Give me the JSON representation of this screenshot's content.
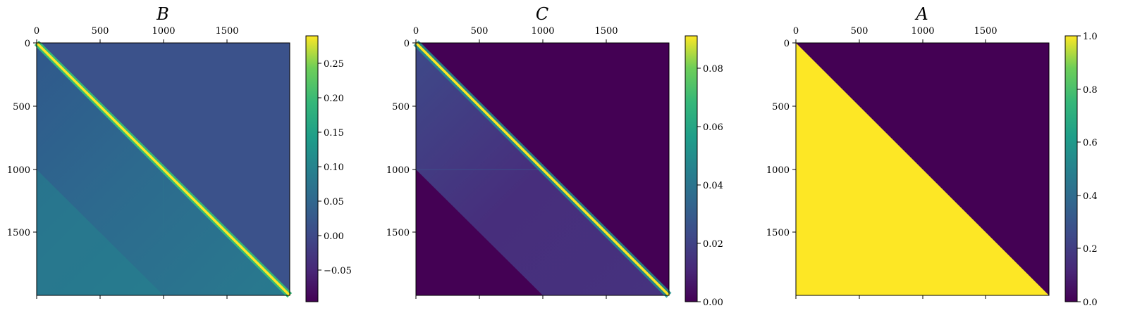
{
  "chart_data": [
    {
      "type": "heatmap",
      "title": "B",
      "matrix_size": 2000,
      "xticks": [
        "0",
        "500",
        "1000",
        "1500"
      ],
      "yticks": [
        "0",
        "500",
        "1000",
        "1500"
      ],
      "xtick_values": [
        0,
        500,
        1000,
        1500
      ],
      "ytick_values": [
        0,
        500,
        1000,
        1500
      ],
      "xaxis_position": "top",
      "colormap": "viridis",
      "colorbar": {
        "range": [
          -0.095,
          0.29
        ],
        "ticks": [
          -0.05,
          0.0,
          0.05,
          0.1,
          0.15,
          0.2,
          0.25
        ],
        "tick_labels": [
          "−0.05",
          "0.00",
          "0.05",
          "0.10",
          "0.15",
          "0.20",
          "0.25"
        ]
      },
      "upper_triangle_value": 0.0,
      "diagonal_value": 0.29,
      "lower_triangle_value_approx": 0.06
    },
    {
      "type": "heatmap",
      "title": "C",
      "matrix_size": 2000,
      "xticks": [
        "0",
        "500",
        "1000",
        "1500"
      ],
      "yticks": [
        "0",
        "500",
        "1000",
        "1500"
      ],
      "xtick_values": [
        0,
        500,
        1000,
        1500
      ],
      "ytick_values": [
        0,
        500,
        1000,
        1500
      ],
      "xaxis_position": "top",
      "colormap": "viridis",
      "colorbar": {
        "range": [
          0.0,
          0.091
        ],
        "ticks": [
          0.0,
          0.02,
          0.04,
          0.06,
          0.08
        ],
        "tick_labels": [
          "0.00",
          "0.02",
          "0.04",
          "0.06",
          "0.08"
        ]
      },
      "upper_triangle_value": 0.0,
      "diagonal_value": 0.091,
      "lower_triangle_value_approx": 0.012
    },
    {
      "type": "heatmap",
      "title": "A",
      "matrix_size": 2000,
      "xticks": [
        "0",
        "500",
        "1000",
        "1500"
      ],
      "yticks": [
        "0",
        "500",
        "1000",
        "1500"
      ],
      "xtick_values": [
        0,
        500,
        1000,
        1500
      ],
      "ytick_values": [
        0,
        500,
        1000,
        1500
      ],
      "xaxis_position": "top",
      "colormap": "viridis",
      "colorbar": {
        "range": [
          0.0,
          1.0
        ],
        "ticks": [
          0.0,
          0.2,
          0.4,
          0.6,
          0.8,
          1.0
        ],
        "tick_labels": [
          "0.0",
          "0.2",
          "0.4",
          "0.6",
          "0.8",
          "1.0"
        ]
      },
      "upper_triangle_value": 0.0,
      "lower_triangle_value": 1.0
    }
  ],
  "colors": {
    "viridis_dark": "#440154",
    "viridis_blue": "#3b528b",
    "viridis_teal": "#21918c",
    "viridis_green": "#5ec962",
    "viridis_yellow": "#fde725"
  }
}
